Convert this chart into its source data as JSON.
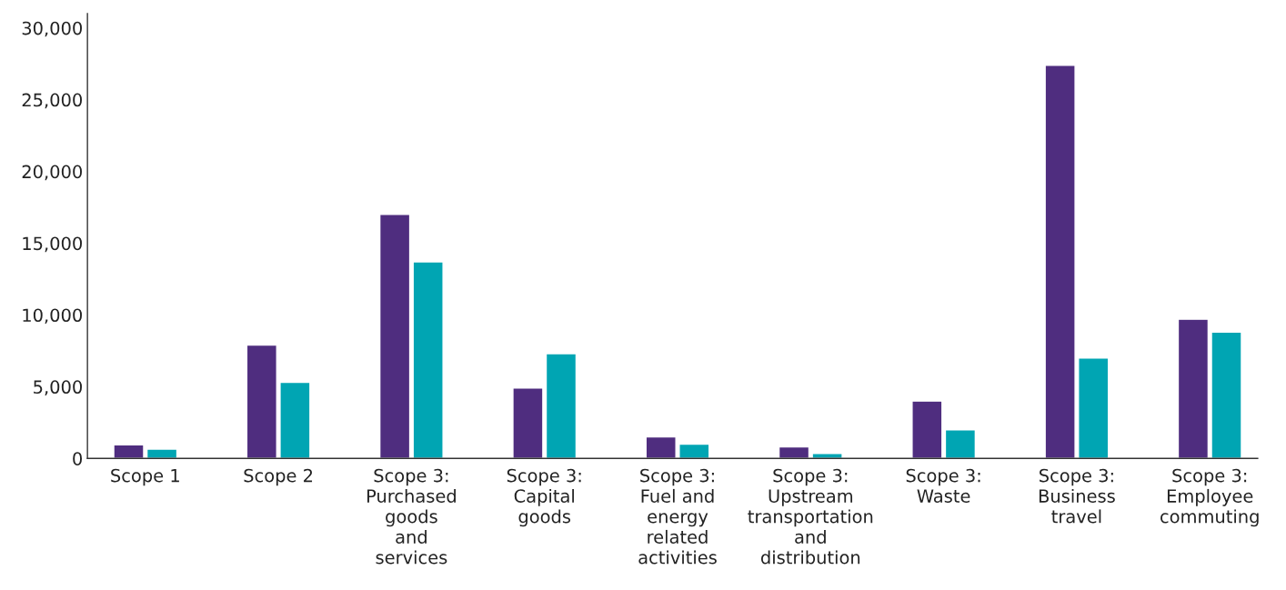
{
  "chart_data": {
    "type": "bar",
    "categories": [
      "Scope 1",
      "Scope 2",
      "Scope 3:\nPurchased\ngoods\nand\nservices",
      "Scope 3:\nCapital\ngoods",
      "Scope 3:\nFuel and\nenergy\nrelated\nactivities",
      "Scope 3:\nUpstream\ntransportation\nand\ndistribution",
      "Scope 3:\nWaste",
      "Scope 3:\nBusiness\ntravel",
      "Scope 3:\nEmployee\ncommuting"
    ],
    "series": [
      {
        "color": "#4f2d7f",
        "values": [
          950,
          7900,
          17000,
          4900,
          1500,
          800,
          4000,
          27400,
          9700
        ]
      },
      {
        "color": "#00a5b3",
        "values": [
          650,
          5300,
          13700,
          7300,
          1000,
          350,
          2000,
          7000,
          8800
        ]
      }
    ],
    "ylim": [
      0,
      31000
    ],
    "yticks": [
      0,
      {
        "value": 5000,
        "label": "5,000"
      },
      {
        "value": 10000,
        "label": "10,000"
      },
      {
        "value": 15000,
        "label": "15,000"
      },
      {
        "value": 20000,
        "label": "20,000"
      },
      {
        "value": 25000,
        "label": "25,000"
      },
      {
        "value": 30000,
        "label": "30,000"
      }
    ]
  }
}
